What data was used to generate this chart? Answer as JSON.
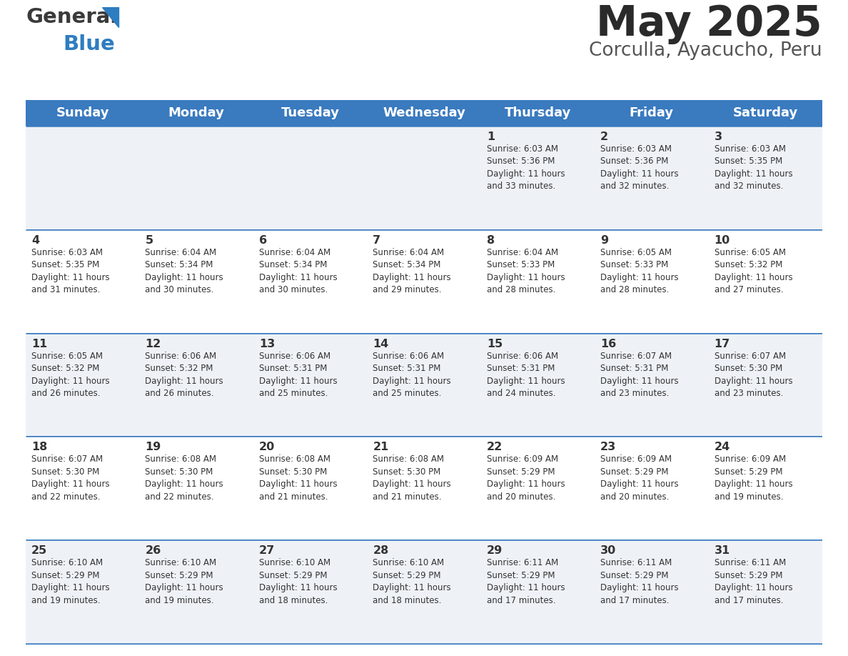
{
  "title": "May 2025",
  "subtitle": "Corculla, Ayacucho, Peru",
  "header_bg": "#3a7abf",
  "header_text": "#ffffff",
  "row_bg_light": "#eef2f7",
  "row_bg_white": "#ffffff",
  "row_separator": "#3a7abf",
  "text_color": "#333333",
  "days_of_week": [
    "Sunday",
    "Monday",
    "Tuesday",
    "Wednesday",
    "Thursday",
    "Friday",
    "Saturday"
  ],
  "calendar_data": [
    [
      "",
      "",
      "",
      "",
      "1\nSunrise: 6:03 AM\nSunset: 5:36 PM\nDaylight: 11 hours\nand 33 minutes.",
      "2\nSunrise: 6:03 AM\nSunset: 5:36 PM\nDaylight: 11 hours\nand 32 minutes.",
      "3\nSunrise: 6:03 AM\nSunset: 5:35 PM\nDaylight: 11 hours\nand 32 minutes."
    ],
    [
      "4\nSunrise: 6:03 AM\nSunset: 5:35 PM\nDaylight: 11 hours\nand 31 minutes.",
      "5\nSunrise: 6:04 AM\nSunset: 5:34 PM\nDaylight: 11 hours\nand 30 minutes.",
      "6\nSunrise: 6:04 AM\nSunset: 5:34 PM\nDaylight: 11 hours\nand 30 minutes.",
      "7\nSunrise: 6:04 AM\nSunset: 5:34 PM\nDaylight: 11 hours\nand 29 minutes.",
      "8\nSunrise: 6:04 AM\nSunset: 5:33 PM\nDaylight: 11 hours\nand 28 minutes.",
      "9\nSunrise: 6:05 AM\nSunset: 5:33 PM\nDaylight: 11 hours\nand 28 minutes.",
      "10\nSunrise: 6:05 AM\nSunset: 5:32 PM\nDaylight: 11 hours\nand 27 minutes."
    ],
    [
      "11\nSunrise: 6:05 AM\nSunset: 5:32 PM\nDaylight: 11 hours\nand 26 minutes.",
      "12\nSunrise: 6:06 AM\nSunset: 5:32 PM\nDaylight: 11 hours\nand 26 minutes.",
      "13\nSunrise: 6:06 AM\nSunset: 5:31 PM\nDaylight: 11 hours\nand 25 minutes.",
      "14\nSunrise: 6:06 AM\nSunset: 5:31 PM\nDaylight: 11 hours\nand 25 minutes.",
      "15\nSunrise: 6:06 AM\nSunset: 5:31 PM\nDaylight: 11 hours\nand 24 minutes.",
      "16\nSunrise: 6:07 AM\nSunset: 5:31 PM\nDaylight: 11 hours\nand 23 minutes.",
      "17\nSunrise: 6:07 AM\nSunset: 5:30 PM\nDaylight: 11 hours\nand 23 minutes."
    ],
    [
      "18\nSunrise: 6:07 AM\nSunset: 5:30 PM\nDaylight: 11 hours\nand 22 minutes.",
      "19\nSunrise: 6:08 AM\nSunset: 5:30 PM\nDaylight: 11 hours\nand 22 minutes.",
      "20\nSunrise: 6:08 AM\nSunset: 5:30 PM\nDaylight: 11 hours\nand 21 minutes.",
      "21\nSunrise: 6:08 AM\nSunset: 5:30 PM\nDaylight: 11 hours\nand 21 minutes.",
      "22\nSunrise: 6:09 AM\nSunset: 5:29 PM\nDaylight: 11 hours\nand 20 minutes.",
      "23\nSunrise: 6:09 AM\nSunset: 5:29 PM\nDaylight: 11 hours\nand 20 minutes.",
      "24\nSunrise: 6:09 AM\nSunset: 5:29 PM\nDaylight: 11 hours\nand 19 minutes."
    ],
    [
      "25\nSunrise: 6:10 AM\nSunset: 5:29 PM\nDaylight: 11 hours\nand 19 minutes.",
      "26\nSunrise: 6:10 AM\nSunset: 5:29 PM\nDaylight: 11 hours\nand 19 minutes.",
      "27\nSunrise: 6:10 AM\nSunset: 5:29 PM\nDaylight: 11 hours\nand 18 minutes.",
      "28\nSunrise: 6:10 AM\nSunset: 5:29 PM\nDaylight: 11 hours\nand 18 minutes.",
      "29\nSunrise: 6:11 AM\nSunset: 5:29 PM\nDaylight: 11 hours\nand 17 minutes.",
      "30\nSunrise: 6:11 AM\nSunset: 5:29 PM\nDaylight: 11 hours\nand 17 minutes.",
      "31\nSunrise: 6:11 AM\nSunset: 5:29 PM\nDaylight: 11 hours\nand 17 minutes."
    ]
  ]
}
